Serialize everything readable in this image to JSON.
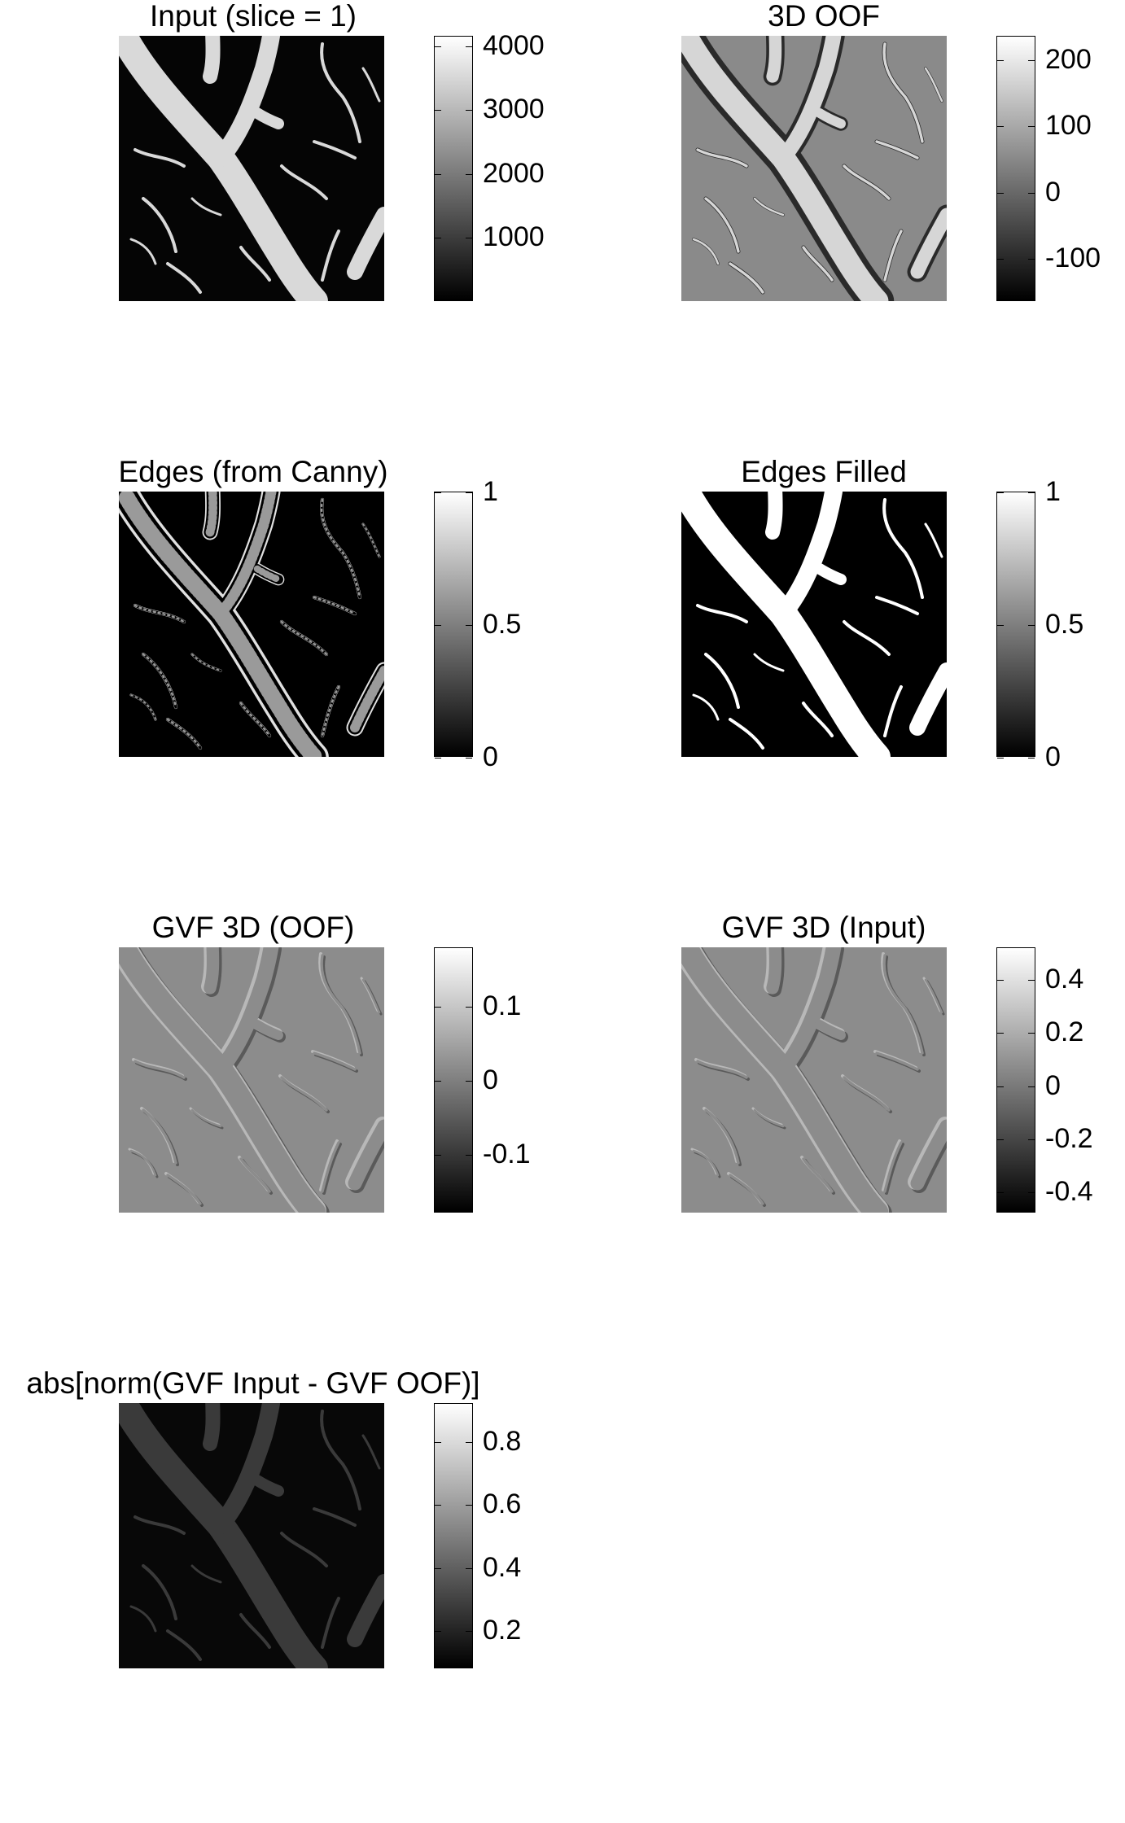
{
  "panels": [
    {
      "title": "Input (slice = 1)",
      "image_description_kind": "grayscale-vessel-image",
      "colorbar": {
        "min": 0,
        "max": 4150,
        "ticks": [
          {
            "value": 4000,
            "label": "4000"
          },
          {
            "value": 3000,
            "label": "3000"
          },
          {
            "value": 2000,
            "label": "2000"
          },
          {
            "value": 1000,
            "label": "1000"
          }
        ]
      }
    },
    {
      "title": "3D OOF",
      "image_description_kind": "oof-response",
      "colorbar": {
        "min": -165,
        "max": 235,
        "ticks": [
          {
            "value": 200,
            "label": "200"
          },
          {
            "value": 100,
            "label": "100"
          },
          {
            "value": 0,
            "label": "0"
          },
          {
            "value": -100,
            "label": "-100"
          }
        ]
      }
    },
    {
      "title": "Edges (from Canny)",
      "image_description_kind": "edge-map",
      "colorbar": {
        "min": 0,
        "max": 1,
        "ticks": [
          {
            "value": 1,
            "label": "1"
          },
          {
            "value": 0.5,
            "label": "0.5"
          },
          {
            "value": 0,
            "label": "0"
          }
        ]
      }
    },
    {
      "title": "Edges Filled",
      "image_description_kind": "binary-mask",
      "colorbar": {
        "min": 0,
        "max": 1,
        "ticks": [
          {
            "value": 1,
            "label": "1"
          },
          {
            "value": 0.5,
            "label": "0.5"
          },
          {
            "value": 0,
            "label": "0"
          }
        ]
      }
    },
    {
      "title": "GVF 3D (OOF)",
      "image_description_kind": "gvf-field",
      "colorbar": {
        "min": -0.18,
        "max": 0.18,
        "ticks": [
          {
            "value": 0.1,
            "label": "0.1"
          },
          {
            "value": 0,
            "label": "0"
          },
          {
            "value": -0.1,
            "label": "-0.1"
          }
        ]
      }
    },
    {
      "title": "GVF 3D (Input)",
      "image_description_kind": "gvf-field",
      "colorbar": {
        "min": -0.48,
        "max": 0.52,
        "ticks": [
          {
            "value": 0.4,
            "label": "0.4"
          },
          {
            "value": 0.2,
            "label": "0.2"
          },
          {
            "value": 0,
            "label": "0"
          },
          {
            "value": -0.2,
            "label": "-0.2"
          },
          {
            "value": -0.4,
            "label": "-0.4"
          }
        ]
      }
    },
    {
      "title": "abs[norm(GVF Input - GVF OOF)]",
      "image_description_kind": "difference-magnitude",
      "colorbar": {
        "min": 0.08,
        "max": 0.92,
        "ticks": [
          {
            "value": 0.8,
            "label": "0.8"
          },
          {
            "value": 0.6,
            "label": "0.6"
          },
          {
            "value": 0.4,
            "label": "0.4"
          },
          {
            "value": 0.2,
            "label": "0.2"
          }
        ]
      }
    }
  ],
  "colors": {
    "background": "#ffffff",
    "colormap_low": "#000000",
    "colormap_high": "#ffffff"
  }
}
